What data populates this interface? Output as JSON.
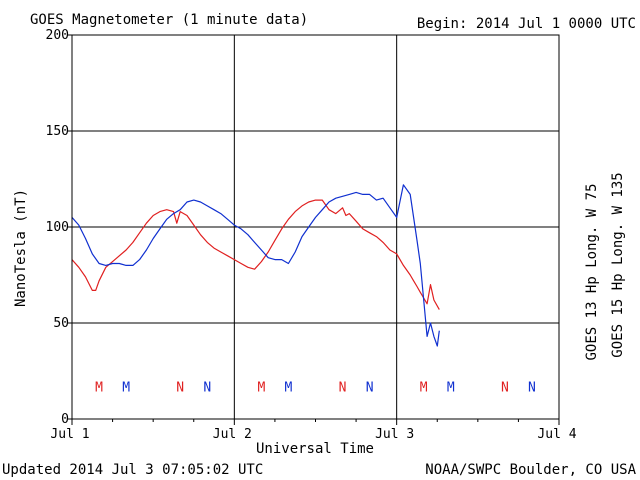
{
  "header": {
    "title": "GOES Magnetometer (1 minute data)",
    "begin": "Begin:  2014 Jul 1 0000 UTC"
  },
  "footer": {
    "updated": "Updated 2014 Jul  3 07:05:02 UTC",
    "source": "NOAA/SWPC Boulder, CO USA"
  },
  "colors": {
    "goes13": "#e02020",
    "goes15": "#1030d0",
    "axes": "#000000",
    "background": "#ffffff"
  },
  "chart_data": {
    "type": "line",
    "title": "GOES Magnetometer (1 minute data)",
    "xlabel": "Universal Time",
    "ylabel": "NanoTesla (nT)",
    "xlim": [
      0,
      72
    ],
    "x_unit": "hours since 2014 Jul 1 0000 UTC",
    "ylim": [
      0,
      200
    ],
    "grid": true,
    "x_ticks": [
      {
        "x": 0,
        "label": "Jul 1"
      },
      {
        "x": 24,
        "label": "Jul 2"
      },
      {
        "x": 48,
        "label": "Jul 3"
      },
      {
        "x": 72,
        "label": "Jul 4"
      }
    ],
    "y_ticks": [
      {
        "y": 0,
        "label": "0"
      },
      {
        "y": 50,
        "label": "50"
      },
      {
        "y": 100,
        "label": "100"
      },
      {
        "y": 150,
        "label": "150"
      },
      {
        "y": 200,
        "label": "200"
      }
    ],
    "legend_position": "right-vertical",
    "series": [
      {
        "name": "GOES 13 Hp  Long. W 75",
        "color": "#e02020",
        "x": [
          0,
          1,
          2,
          3,
          3.5,
          4,
          5,
          6,
          7,
          8,
          9,
          10,
          11,
          12,
          13,
          14,
          15,
          15.5,
          16,
          17,
          18,
          19,
          20,
          21,
          22,
          23,
          24,
          25,
          26,
          27,
          28,
          29,
          30,
          31,
          32,
          33,
          34,
          35,
          36,
          37,
          38,
          39,
          40,
          40.5,
          41,
          42,
          43,
          44,
          45,
          46,
          47,
          48,
          49,
          50,
          50.5,
          51,
          51.5,
          52,
          52.5,
          53,
          53.5,
          54.3
        ],
        "y": [
          83,
          79,
          74,
          67,
          67,
          72,
          79,
          82,
          85,
          88,
          92,
          97,
          102,
          106,
          108,
          109,
          108,
          102,
          108,
          106,
          101,
          96,
          92,
          89,
          87,
          85,
          83,
          81,
          79,
          78,
          82,
          87,
          93,
          99,
          104,
          108,
          111,
          113,
          114,
          114,
          109,
          107,
          110,
          106,
          107,
          103,
          99,
          97,
          95,
          92,
          88,
          86,
          80,
          75,
          72,
          69,
          66,
          63,
          60,
          70,
          62,
          57
        ]
      },
      {
        "name": "GOES 15 Hp  Long. W 135",
        "color": "#1030d0",
        "x": [
          0,
          1,
          2,
          3,
          4,
          5,
          6,
          7,
          8,
          9,
          10,
          11,
          12,
          13,
          14,
          15,
          16,
          17,
          18,
          19,
          20,
          21,
          22,
          23,
          24,
          25,
          26,
          27,
          28,
          29,
          30,
          31,
          32,
          33,
          34,
          35,
          36,
          37,
          38,
          39,
          40,
          41,
          42,
          43,
          44,
          45,
          46,
          47,
          48,
          49,
          50,
          50.5,
          51,
          51.5,
          52,
          52.5,
          53,
          53.5,
          54,
          54.3
        ],
        "y": [
          105,
          101,
          94,
          86,
          81,
          80,
          81,
          81,
          80,
          80,
          83,
          88,
          94,
          99,
          104,
          107,
          109,
          113,
          114,
          113,
          111,
          109,
          107,
          104,
          101,
          99,
          96,
          92,
          88,
          84,
          83,
          83,
          81,
          87,
          95,
          100,
          105,
          109,
          113,
          115,
          116,
          117,
          118,
          117,
          117,
          114,
          115,
          110,
          105,
          122,
          117,
          105,
          93,
          81,
          62,
          43,
          50,
          43,
          38,
          46
        ]
      }
    ],
    "annotations": [
      {
        "x": 4,
        "label": "M",
        "color": "#e02020"
      },
      {
        "x": 8,
        "label": "M",
        "color": "#1030d0"
      },
      {
        "x": 16,
        "label": "N",
        "color": "#e02020"
      },
      {
        "x": 20,
        "label": "N",
        "color": "#1030d0"
      },
      {
        "x": 28,
        "label": "M",
        "color": "#e02020"
      },
      {
        "x": 32,
        "label": "M",
        "color": "#1030d0"
      },
      {
        "x": 40,
        "label": "N",
        "color": "#e02020"
      },
      {
        "x": 44,
        "label": "N",
        "color": "#1030d0"
      },
      {
        "x": 52,
        "label": "M",
        "color": "#e02020"
      },
      {
        "x": 56,
        "label": "M",
        "color": "#1030d0"
      },
      {
        "x": 64,
        "label": "N",
        "color": "#e02020"
      },
      {
        "x": 68,
        "label": "N",
        "color": "#1030d0"
      }
    ],
    "annotation_y": 17
  }
}
